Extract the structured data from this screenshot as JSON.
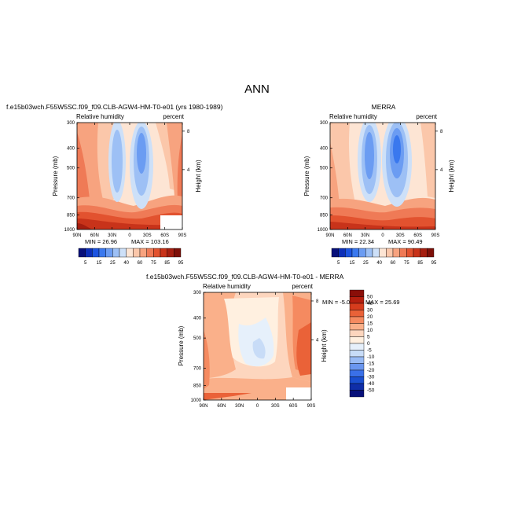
{
  "figure": {
    "title": "ANN"
  },
  "colors": {
    "scale": [
      "#08107a",
      "#0d2fb8",
      "#1c54e0",
      "#3a78ee",
      "#6b9cf2",
      "#9dc0f5",
      "#cde0f8",
      "#fde5d4",
      "#fbc7aa",
      "#f7a37f",
      "#ef7a56",
      "#e2522f",
      "#c8331a",
      "#a51e10",
      "#7d0f08"
    ],
    "diff_scale": [
      "#08107a",
      "#0f2ea8",
      "#1a4fd0",
      "#3a70e8",
      "#6a96ef",
      "#98baf4",
      "#c8dcf7",
      "#e6f0fb",
      "#fff0e0",
      "#fdd6be",
      "#fab08a",
      "#f58a60",
      "#ea6238",
      "#d63c1d",
      "#b51f0f",
      "#8a0e08"
    ]
  },
  "axes_labels": {
    "x_ticks": [
      "90N",
      "60N",
      "30N",
      "0",
      "30S",
      "60S",
      "90S"
    ],
    "y_ticks": [
      "300",
      "400",
      "500",
      "700",
      "850",
      "1000"
    ],
    "height_ticks": [
      "8",
      "4"
    ],
    "ylabel": "Pressure (mb)",
    "right_label": "Height (km)"
  },
  "chart_data": [
    {
      "type": "heatmap",
      "title": "f.e15b03wch.F55W5SC.f09_f09.CLB-AGW4-HM-T0-e01 (yrs 1980-1989)",
      "subtitle_left": "Relative humidity",
      "subtitle_right": "percent",
      "x": [
        "90N",
        "60N",
        "30N",
        "0",
        "30S",
        "60S",
        "90S"
      ],
      "y": [
        300,
        400,
        500,
        700,
        850,
        1000
      ],
      "ylabel": "Pressure (mb)",
      "right_axis_label": "Height (km)",
      "min_label": "MIN = 26.96",
      "max_label": "MAX = 103.16",
      "levels": [
        5,
        10,
        15,
        20,
        25,
        30,
        40,
        50,
        60,
        70,
        75,
        80,
        85,
        90,
        95
      ],
      "colorbar_labels": [
        "5",
        "15",
        "25",
        "40",
        "60",
        "75",
        "85",
        "95"
      ],
      "troughs": [
        {
          "lat": -15,
          "lev": 500,
          "value": 27
        },
        {
          "lat": 10,
          "lev": 500,
          "value": 34
        }
      ],
      "peaks": [
        {
          "lat": -85,
          "lev": 950,
          "value": 103
        }
      ]
    },
    {
      "type": "heatmap",
      "title": "MERRA",
      "subtitle_left": "Relative humidity",
      "subtitle_right": "percent",
      "x": [
        "90N",
        "60N",
        "30N",
        "0",
        "30S",
        "60S",
        "90S"
      ],
      "y": [
        300,
        400,
        500,
        700,
        850,
        1000
      ],
      "ylabel": "Pressure (mb)",
      "right_axis_label": "Height (km)",
      "min_label": "MIN = 22.34",
      "max_label": "MAX = 90.49",
      "levels": [
        5,
        10,
        15,
        20,
        25,
        30,
        40,
        50,
        60,
        70,
        75,
        80,
        85,
        90,
        95
      ],
      "colorbar_labels": [
        "5",
        "15",
        "25",
        "40",
        "60",
        "75",
        "85",
        "95"
      ],
      "troughs": [
        {
          "lat": -15,
          "lev": 500,
          "value": 22
        },
        {
          "lat": 10,
          "lev": 500,
          "value": 30
        }
      ],
      "peaks": [
        {
          "lat": -70,
          "lev": 950,
          "value": 90
        }
      ]
    },
    {
      "type": "heatmap",
      "title": "f.e15b03wch.F55W5SC.f09_f09.CLB-AGW4-HM-T0-e01 - MERRA",
      "subtitle_left": "Relative humidity",
      "subtitle_right": "percent",
      "x": [
        "90N",
        "60N",
        "30N",
        "0",
        "30S",
        "60S",
        "90S"
      ],
      "y": [
        300,
        400,
        500,
        700,
        850,
        1000
      ],
      "ylabel": "Pressure (mb)",
      "right_axis_label": "Height (km)",
      "min_label": "MIN = -5.04",
      "max_label": "MAX = 25.69",
      "levels": [
        -50,
        -40,
        -30,
        -20,
        -15,
        -10,
        -5,
        0,
        5,
        10,
        15,
        20,
        30,
        40,
        50
      ],
      "colorbar_labels": [
        "50",
        "40",
        "30",
        "20",
        "15",
        "10",
        "5",
        "0",
        "-5",
        "-10",
        "-15",
        "-20",
        "-30",
        "-40",
        "-50"
      ],
      "minimum": {
        "lat": 0,
        "lev": 650,
        "value": -5
      },
      "maximum": {
        "lat": -55,
        "lev": 800,
        "value": 25.7
      }
    }
  ]
}
